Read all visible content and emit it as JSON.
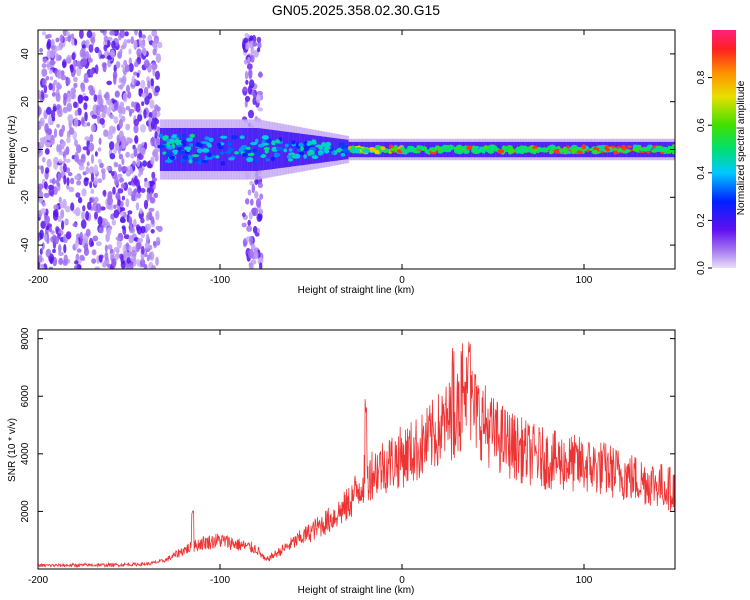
{
  "figure": {
    "title": "GN05.2025.358.02.30.G15"
  },
  "chart_data": [
    {
      "type": "heatmap",
      "title": "GN05.2025.358.02.30.G15",
      "xlabel": "Height of straight line (km)",
      "ylabel": "Frequency (Hz)",
      "xlim": [
        -200,
        150
      ],
      "ylim": [
        -50,
        50
      ],
      "xticks": [
        -200,
        -100,
        0,
        100
      ],
      "yticks": [
        -40,
        -20,
        0,
        20,
        40
      ],
      "colorbar": {
        "label": "Normalized spectral amplitude",
        "range": [
          0.0,
          1.0
        ],
        "ticks": [
          0.0,
          0.2,
          0.4,
          0.6,
          0.8
        ]
      },
      "description_of_features": [
        {
          "region": "noise",
          "x_range": [
            -200,
            -133
          ],
          "freq_range": [
            -50,
            50
          ],
          "amplitude": 0.1
        },
        {
          "region": "noise-stripe",
          "x_range": [
            -87,
            -77
          ],
          "freq_range": [
            -50,
            50
          ],
          "amplitude": 0.1
        },
        {
          "region": "signal-core",
          "x_range": [
            -133,
            150
          ],
          "center_freq": 0,
          "peak_amplitude": 0.9
        }
      ]
    },
    {
      "type": "line",
      "xlabel": "Height of straight line (km)",
      "ylabel": "SNR (10 * v/v)",
      "xlim": [
        -200,
        150
      ],
      "ylim": [
        0,
        8300
      ],
      "xticks": [
        -200,
        -100,
        0,
        100
      ],
      "yticks": [
        2000,
        4000,
        6000,
        8000
      ],
      "series": [
        {
          "name": "SNR",
          "color": "#ee3333",
          "envelope_points": [
            [
              -200,
              120
            ],
            [
              -180,
              130
            ],
            [
              -160,
              140
            ],
            [
              -140,
              170
            ],
            [
              -130,
              300
            ],
            [
              -120,
              650
            ],
            [
              -110,
              900
            ],
            [
              -100,
              1000
            ],
            [
              -90,
              850
            ],
            [
              -80,
              700
            ],
            [
              -75,
              300
            ],
            [
              -70,
              500
            ],
            [
              -60,
              900
            ],
            [
              -50,
              1300
            ],
            [
              -40,
              1700
            ],
            [
              -30,
              2200
            ],
            [
              -25,
              2700
            ],
            [
              -20,
              3200
            ],
            [
              -10,
              3600
            ],
            [
              0,
              3900
            ],
            [
              10,
              4200
            ],
            [
              20,
              4800
            ],
            [
              30,
              5400
            ],
            [
              35,
              6000
            ],
            [
              40,
              5500
            ],
            [
              50,
              4700
            ],
            [
              60,
              4300
            ],
            [
              70,
              4000
            ],
            [
              80,
              3800
            ],
            [
              90,
              3700
            ],
            [
              100,
              3600
            ],
            [
              110,
              3500
            ],
            [
              120,
              3300
            ],
            [
              130,
              3100
            ],
            [
              140,
              2950
            ],
            [
              150,
              2750
            ]
          ],
          "peaks": [
            [
              -20,
              5900
            ],
            [
              28,
              7700
            ],
            [
              33,
              8000
            ],
            [
              37,
              8300
            ],
            [
              -115,
              2100
            ]
          ]
        }
      ]
    }
  ]
}
